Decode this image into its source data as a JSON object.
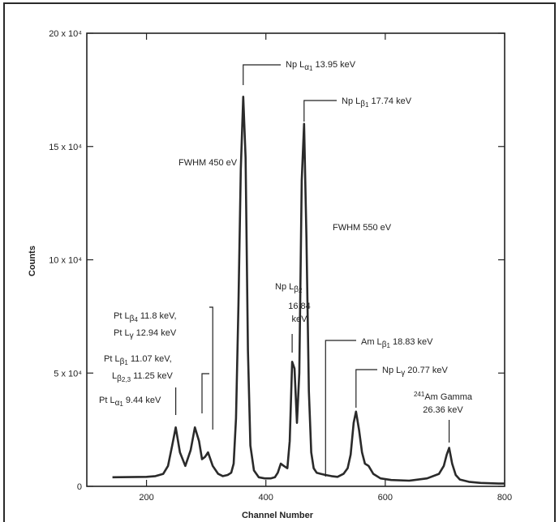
{
  "chart_data": {
    "type": "line",
    "title": "",
    "xlabel": "Channel Number",
    "ylabel": "Counts",
    "xlim": [
      100,
      800
    ],
    "ylim": [
      0,
      200000
    ],
    "x_ticks": [
      {
        "value": 200,
        "label": "200"
      },
      {
        "value": 400,
        "label": "400"
      },
      {
        "value": 600,
        "label": "600"
      },
      {
        "value": 800,
        "label": "800"
      }
    ],
    "y_ticks": [
      {
        "value": 0,
        "label": "0"
      },
      {
        "value": 50000,
        "label": "5 x 10⁴"
      },
      {
        "value": 100000,
        "label": "10 x 10⁴"
      },
      {
        "value": 150000,
        "label": "15 x 10⁴"
      },
      {
        "value": 200000,
        "label": "20 x 10⁴"
      }
    ],
    "grid": false,
    "series": [
      {
        "x": [
          143,
          200,
          215,
          228,
          236,
          243,
          249,
          256,
          265,
          274,
          281,
          288,
          293,
          298,
          303,
          311,
          320,
          328,
          336,
          342,
          346,
          350,
          354,
          358,
          362,
          366,
          370,
          374,
          380,
          388,
          398,
          408,
          415,
          420,
          425,
          430,
          436,
          440,
          444,
          448,
          452,
          456,
          460,
          464,
          468,
          472,
          476,
          480,
          485,
          492,
          500,
          510,
          520,
          530,
          537,
          542,
          547,
          551,
          556,
          561,
          566,
          572,
          580,
          592,
          610,
          640,
          670,
          690,
          698,
          703,
          707,
          712,
          718,
          725,
          740,
          760,
          790,
          800
        ],
        "y": [
          4000,
          4200,
          4500,
          5500,
          9000,
          18000,
          26000,
          15000,
          9000,
          16000,
          26000,
          20000,
          12000,
          13000,
          15000,
          9000,
          5500,
          4500,
          5000,
          6000,
          10000,
          30000,
          80000,
          140000,
          172000,
          145000,
          60000,
          18000,
          7000,
          4000,
          3500,
          3500,
          4000,
          6000,
          10000,
          9000,
          8000,
          20000,
          55000,
          52000,
          28000,
          50000,
          135000,
          160000,
          110000,
          42000,
          15000,
          8000,
          6000,
          5500,
          5000,
          4500,
          4200,
          5500,
          8000,
          14000,
          28000,
          33000,
          25000,
          15000,
          10000,
          9000,
          5500,
          3500,
          2800,
          2500,
          3500,
          5500,
          9000,
          14000,
          17000,
          10000,
          5000,
          3000,
          2000,
          1500,
          1200,
          1200
        ]
      }
    ],
    "annotations": [
      {
        "id": "np-la1",
        "parts": [
          [
            "Np L",
            ""
          ],
          [
            "α",
            "sub"
          ],
          [
            "1",
            "sub2"
          ],
          [
            "  13.95 keV",
            ""
          ]
        ],
        "peak_x": 362,
        "peak_y": 172000
      },
      {
        "id": "np-lb1",
        "parts": [
          [
            "Np L",
            ""
          ],
          [
            "β",
            "sub"
          ],
          [
            "1",
            "sub2"
          ],
          [
            "  17.74 keV",
            ""
          ]
        ],
        "peak_x": 464,
        "peak_y": 160000
      },
      {
        "id": "np-lb2",
        "lines": [
          "16.84",
          "keV"
        ],
        "first": [
          [
            "Np L",
            ""
          ],
          [
            "β",
            "sub"
          ],
          [
            "2",
            "sub2"
          ]
        ],
        "peak_x": 444,
        "peak_y": 55000
      },
      {
        "id": "pt-lb4",
        "first": [
          [
            "Pt L",
            ""
          ],
          [
            "β",
            "sub"
          ],
          [
            "4",
            "sub2"
          ],
          [
            "  11.8 keV,",
            ""
          ]
        ],
        "second": [
          [
            "Pt L",
            ""
          ],
          [
            "γ",
            "sub"
          ],
          [
            "  12.94 keV",
            ""
          ]
        ],
        "peak_x": 311
      },
      {
        "id": "pt-lb1",
        "first": [
          [
            "Pt L",
            ""
          ],
          [
            "β",
            "sub"
          ],
          [
            "1",
            "sub2"
          ],
          [
            "  11.07 keV,",
            ""
          ]
        ],
        "second": [
          [
            "L",
            ""
          ],
          [
            "β",
            "sub"
          ],
          [
            "2,3",
            "sub2"
          ],
          [
            "  11.25 keV",
            ""
          ]
        ],
        "peak_x": 293
      },
      {
        "id": "pt-la1",
        "parts": [
          [
            "Pt L",
            ""
          ],
          [
            "α",
            "sub"
          ],
          [
            "1",
            "sub2"
          ],
          [
            "  9.44 keV",
            ""
          ]
        ],
        "peak_x": 249
      },
      {
        "id": "am-lb1",
        "parts": [
          [
            "Am L",
            ""
          ],
          [
            "β",
            "sub"
          ],
          [
            "1",
            "sub2"
          ],
          [
            "  18.83 keV",
            ""
          ]
        ],
        "peak_x": 500
      },
      {
        "id": "np-lg",
        "parts": [
          [
            "Np L",
            ""
          ],
          [
            "γ",
            "sub"
          ],
          [
            "  20.77 keV",
            ""
          ]
        ],
        "peak_x": 551
      },
      {
        "id": "am-gamma",
        "lines": [
          "26.36 keV"
        ],
        "first": [
          [
            "241",
            "sup"
          ],
          [
            "Am Gamma",
            ""
          ]
        ],
        "peak_x": 707
      }
    ],
    "labels": {
      "fwhm_450": "FWHM 450 eV",
      "fwhm_550": "FWHM 550 eV"
    }
  }
}
